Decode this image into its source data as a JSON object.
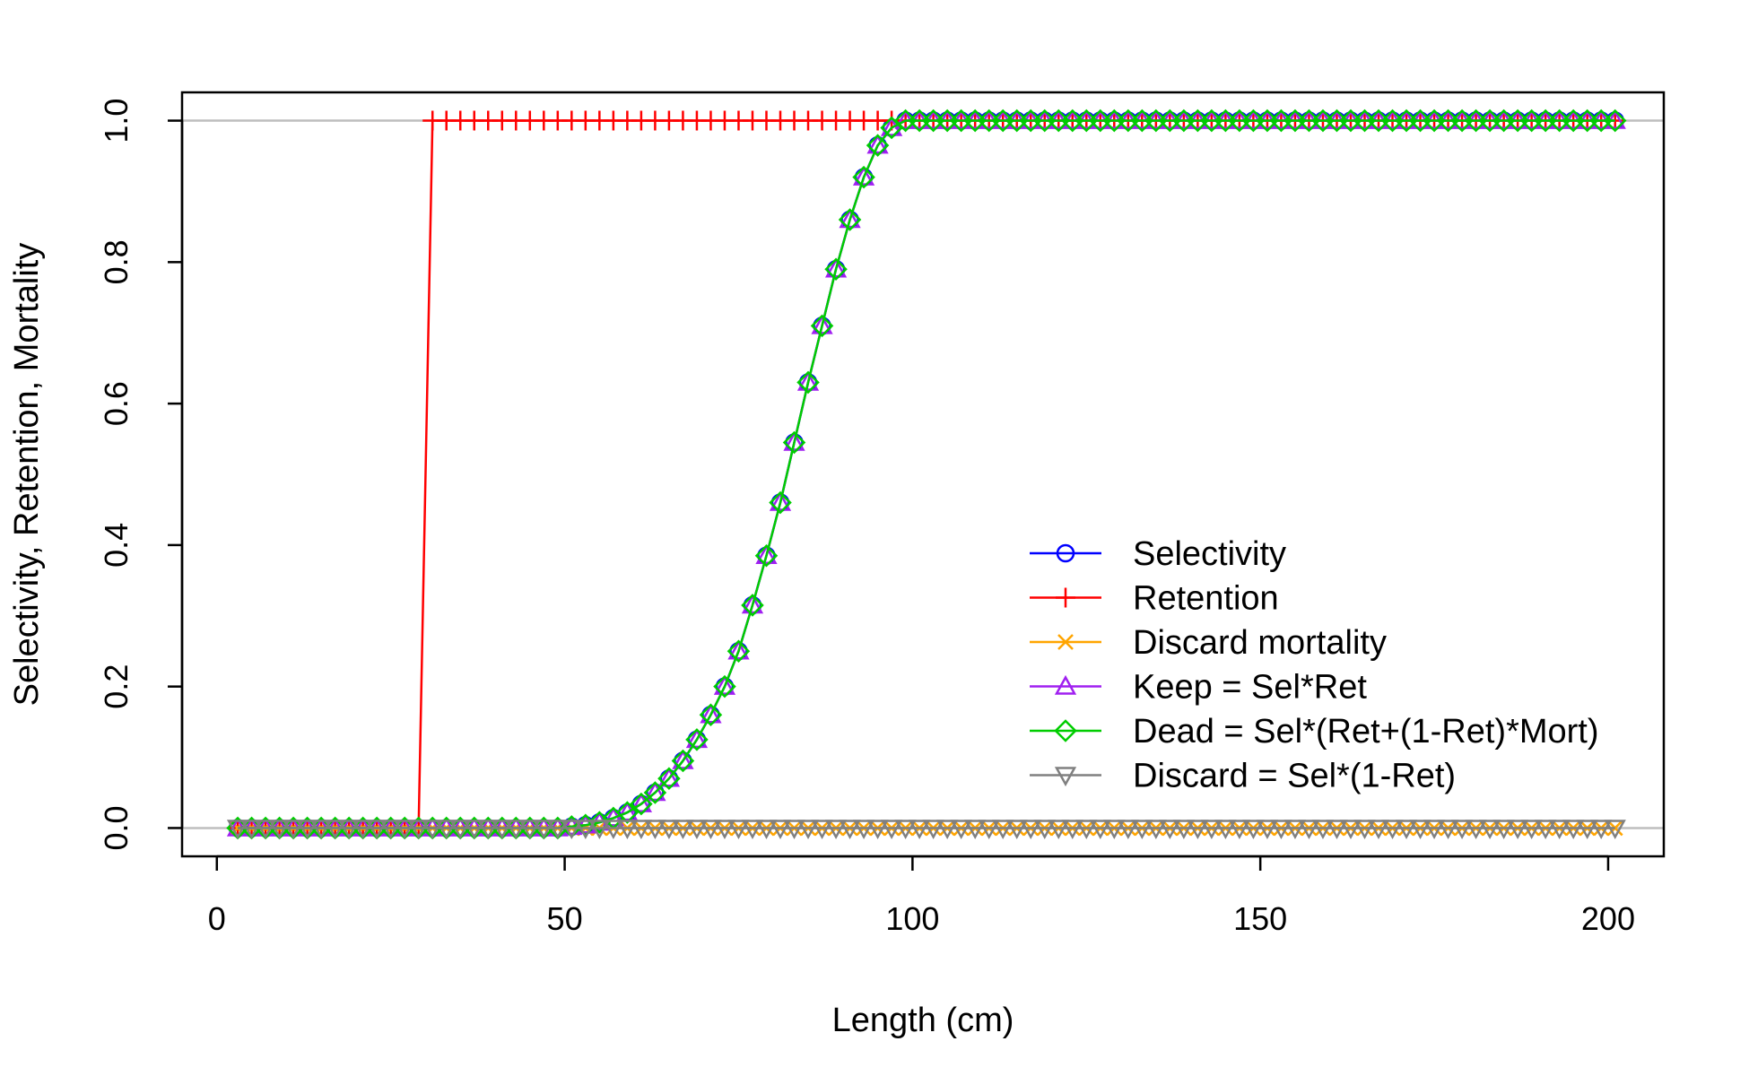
{
  "chart_data": {
    "type": "line",
    "title": "",
    "xlabel": "Length (cm)",
    "ylabel": "Selectivity, Retention, Mortality",
    "xlim": [
      -5,
      208
    ],
    "ylim": [
      -0.04,
      1.04
    ],
    "xticks": [
      0,
      50,
      100,
      150,
      200
    ],
    "xtick_labels": [
      "0",
      "50",
      "100",
      "150",
      "200"
    ],
    "yticks": [
      0.0,
      0.2,
      0.4,
      0.6,
      0.8,
      1.0
    ],
    "ytick_labels": [
      "0.0",
      "0.2",
      "0.4",
      "0.6",
      "0.8",
      "1.0"
    ],
    "reference_lines_y": [
      0,
      1
    ],
    "reference_line_color": "#bebebe",
    "grid": false,
    "legend_position": "bottom-right",
    "x": [
      3,
      5,
      7,
      9,
      11,
      13,
      15,
      17,
      19,
      21,
      23,
      25,
      27,
      29,
      31,
      33,
      35,
      37,
      39,
      41,
      43,
      45,
      47,
      49,
      51,
      53,
      55,
      57,
      59,
      61,
      63,
      65,
      67,
      69,
      71,
      73,
      75,
      77,
      79,
      81,
      83,
      85,
      87,
      89,
      91,
      93,
      95,
      97,
      99,
      101,
      103,
      105,
      107,
      109,
      111,
      113,
      115,
      117,
      119,
      121,
      123,
      125,
      127,
      129,
      131,
      133,
      135,
      137,
      139,
      141,
      143,
      145,
      147,
      149,
      151,
      153,
      155,
      157,
      159,
      161,
      163,
      165,
      167,
      169,
      171,
      173,
      175,
      177,
      179,
      181,
      183,
      185,
      187,
      189,
      191,
      193,
      195,
      197,
      199,
      201
    ],
    "series": [
      {
        "name": "Selectivity",
        "color": "#0000ff",
        "marker": "circle",
        "values": [
          0,
          0,
          0,
          0,
          0,
          0,
          0,
          0,
          0,
          0,
          0,
          0,
          0,
          0,
          0,
          0,
          0,
          0,
          0,
          0,
          0,
          0,
          0,
          0,
          0.002,
          0.004,
          0.008,
          0.014,
          0.022,
          0.034,
          0.05,
          0.07,
          0.095,
          0.125,
          0.16,
          0.2,
          0.25,
          0.315,
          0.385,
          0.46,
          0.545,
          0.63,
          0.71,
          0.79,
          0.86,
          0.92,
          0.965,
          0.99,
          1,
          1,
          1,
          1,
          1,
          1,
          1,
          1,
          1,
          1,
          1,
          1,
          1,
          1,
          1,
          1,
          1,
          1,
          1,
          1,
          1,
          1,
          1,
          1,
          1,
          1,
          1,
          1,
          1,
          1,
          1,
          1,
          1,
          1,
          1,
          1,
          1,
          1,
          1,
          1,
          1,
          1,
          1,
          1,
          1,
          1,
          1,
          1,
          1,
          1,
          1,
          1
        ]
      },
      {
        "name": "Retention",
        "color": "#ff0000",
        "marker": "plus",
        "values": [
          0,
          0,
          0,
          0,
          0,
          0,
          0,
          0,
          0,
          0,
          0,
          0,
          0,
          0,
          1,
          1,
          1,
          1,
          1,
          1,
          1,
          1,
          1,
          1,
          1,
          1,
          1,
          1,
          1,
          1,
          1,
          1,
          1,
          1,
          1,
          1,
          1,
          1,
          1,
          1,
          1,
          1,
          1,
          1,
          1,
          1,
          1,
          1,
          1,
          1,
          1,
          1,
          1,
          1,
          1,
          1,
          1,
          1,
          1,
          1,
          1,
          1,
          1,
          1,
          1,
          1,
          1,
          1,
          1,
          1,
          1,
          1,
          1,
          1,
          1,
          1,
          1,
          1,
          1,
          1,
          1,
          1,
          1,
          1,
          1,
          1,
          1,
          1,
          1,
          1,
          1,
          1,
          1,
          1,
          1,
          1,
          1,
          1,
          1,
          1
        ]
      },
      {
        "name": "Discard mortality",
        "color": "#ffa500",
        "marker": "cross",
        "values": [
          0,
          0,
          0,
          0,
          0,
          0,
          0,
          0,
          0,
          0,
          0,
          0,
          0,
          0,
          0,
          0,
          0,
          0,
          0,
          0,
          0,
          0,
          0,
          0,
          0,
          0,
          0,
          0,
          0,
          0,
          0,
          0,
          0,
          0,
          0,
          0,
          0,
          0,
          0,
          0,
          0,
          0,
          0,
          0,
          0,
          0,
          0,
          0,
          0,
          0,
          0,
          0,
          0,
          0,
          0,
          0,
          0,
          0,
          0,
          0,
          0,
          0,
          0,
          0,
          0,
          0,
          0,
          0,
          0,
          0,
          0,
          0,
          0,
          0,
          0,
          0,
          0,
          0,
          0,
          0,
          0,
          0,
          0,
          0,
          0,
          0,
          0,
          0,
          0,
          0,
          0,
          0,
          0,
          0,
          0,
          0,
          0,
          0,
          0,
          0
        ]
      },
      {
        "name": "Keep = Sel*Ret",
        "color": "#a020f0",
        "marker": "triangle",
        "values": [
          0,
          0,
          0,
          0,
          0,
          0,
          0,
          0,
          0,
          0,
          0,
          0,
          0,
          0,
          0,
          0,
          0,
          0,
          0,
          0,
          0,
          0,
          0,
          0,
          0.002,
          0.004,
          0.008,
          0.014,
          0.022,
          0.034,
          0.05,
          0.07,
          0.095,
          0.125,
          0.16,
          0.2,
          0.25,
          0.315,
          0.385,
          0.46,
          0.545,
          0.63,
          0.71,
          0.79,
          0.86,
          0.92,
          0.965,
          0.99,
          1,
          1,
          1,
          1,
          1,
          1,
          1,
          1,
          1,
          1,
          1,
          1,
          1,
          1,
          1,
          1,
          1,
          1,
          1,
          1,
          1,
          1,
          1,
          1,
          1,
          1,
          1,
          1,
          1,
          1,
          1,
          1,
          1,
          1,
          1,
          1,
          1,
          1,
          1,
          1,
          1,
          1,
          1,
          1,
          1,
          1,
          1,
          1,
          1,
          1,
          1,
          1
        ]
      },
      {
        "name": "Dead = Sel*(Ret+(1-Ret)*Mort)",
        "color": "#00cd00",
        "marker": "diamond",
        "values": [
          0,
          0,
          0,
          0,
          0,
          0,
          0,
          0,
          0,
          0,
          0,
          0,
          0,
          0,
          0,
          0,
          0,
          0,
          0,
          0,
          0,
          0,
          0,
          0,
          0.002,
          0.004,
          0.008,
          0.014,
          0.022,
          0.034,
          0.05,
          0.07,
          0.095,
          0.125,
          0.16,
          0.2,
          0.25,
          0.315,
          0.385,
          0.46,
          0.545,
          0.63,
          0.71,
          0.79,
          0.86,
          0.92,
          0.965,
          0.99,
          1,
          1,
          1,
          1,
          1,
          1,
          1,
          1,
          1,
          1,
          1,
          1,
          1,
          1,
          1,
          1,
          1,
          1,
          1,
          1,
          1,
          1,
          1,
          1,
          1,
          1,
          1,
          1,
          1,
          1,
          1,
          1,
          1,
          1,
          1,
          1,
          1,
          1,
          1,
          1,
          1,
          1,
          1,
          1,
          1,
          1,
          1,
          1,
          1,
          1,
          1,
          1
        ]
      },
      {
        "name": "Discard = Sel*(1-Ret)",
        "color": "#808080",
        "marker": "triangle-down",
        "values": [
          0,
          0,
          0,
          0,
          0,
          0,
          0,
          0,
          0,
          0,
          0,
          0,
          0,
          0,
          0,
          0,
          0,
          0,
          0,
          0,
          0,
          0,
          0,
          0,
          0,
          0,
          0,
          0,
          0,
          0,
          0,
          0,
          0,
          0,
          0,
          0,
          0,
          0,
          0,
          0,
          0,
          0,
          0,
          0,
          0,
          0,
          0,
          0,
          0,
          0,
          0,
          0,
          0,
          0,
          0,
          0,
          0,
          0,
          0,
          0,
          0,
          0,
          0,
          0,
          0,
          0,
          0,
          0,
          0,
          0,
          0,
          0,
          0,
          0,
          0,
          0,
          0,
          0,
          0,
          0,
          0,
          0,
          0,
          0,
          0,
          0,
          0,
          0,
          0,
          0,
          0,
          0,
          0,
          0,
          0,
          0,
          0,
          0,
          0,
          0
        ]
      }
    ]
  }
}
